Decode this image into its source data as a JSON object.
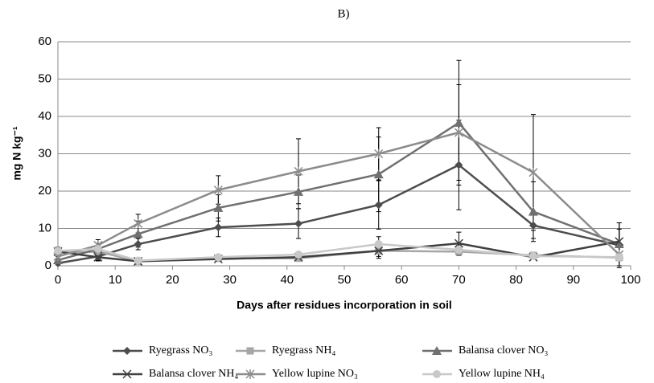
{
  "chart_data": {
    "type": "line",
    "title": "B)",
    "x_label": "Days after residues incorporation in soil",
    "y_label": "mg N kg⁻¹",
    "x": [
      0,
      7,
      14,
      28,
      42,
      56,
      70,
      83,
      98
    ],
    "xlim": [
      0,
      100
    ],
    "xticks": [
      0,
      10,
      20,
      30,
      40,
      50,
      60,
      70,
      80,
      90,
      100
    ],
    "ylim": [
      0,
      60
    ],
    "yticks": [
      0,
      10,
      20,
      30,
      40,
      50,
      60
    ],
    "grid": true,
    "legend": "bottom",
    "series": [
      {
        "name": "Ryegrass NO₃",
        "color": "#4d4d4d",
        "marker": "diamond",
        "values": [
          0.7,
          2.5,
          5.8,
          10.3,
          11.3,
          16.3,
          27,
          10.8,
          5.5
        ],
        "errors": [
          0.5,
          1,
          1.5,
          2.5,
          4,
          6.5,
          12,
          3.5,
          6
        ]
      },
      {
        "name": "Ryegrass NH₄",
        "color": "#a6a6a6",
        "marker": "square",
        "values": [
          3.5,
          3.8,
          1.2,
          2,
          2,
          4,
          3.8,
          2.8,
          2.2
        ],
        "errors": [
          0.8,
          1,
          0.3,
          0.5,
          0.5,
          1.5,
          1,
          0.5,
          0.5
        ]
      },
      {
        "name": "Balansa clover NO₃",
        "color": "#707070",
        "marker": "triangle",
        "values": [
          1.5,
          4.5,
          8.5,
          15.5,
          19.8,
          24.5,
          38.3,
          14.5,
          5.8
        ],
        "errors": [
          1,
          1.5,
          3.5,
          3.5,
          4.5,
          10,
          16.7,
          8,
          4
        ]
      },
      {
        "name": "Balansa clover NH₄",
        "color": "#404040",
        "marker": "x",
        "values": [
          3.8,
          2.3,
          1.2,
          1.8,
          2.3,
          4,
          6,
          2.3,
          6.5
        ],
        "errors": [
          1,
          1,
          0.3,
          0.5,
          0.5,
          2,
          3,
          0.5,
          5
        ]
      },
      {
        "name": "Yellow lupine NO₃",
        "color": "#8c8c8c",
        "marker": "star",
        "values": [
          2.5,
          5.5,
          11.3,
          20.3,
          25.3,
          30,
          35.7,
          25,
          3
        ],
        "errors": [
          1,
          1.5,
          2.5,
          3.8,
          8.7,
          7,
          12.8,
          15.5,
          3
        ]
      },
      {
        "name": "Yellow lupine NH₄",
        "color": "#c8c8c8",
        "marker": "circle",
        "values": [
          4,
          4.5,
          1.4,
          2.3,
          3,
          5.8,
          4.3,
          2.6,
          2.3
        ],
        "errors": [
          1,
          1,
          0.3,
          0.5,
          0.5,
          2,
          1.5,
          0.5,
          0.5
        ]
      }
    ]
  }
}
